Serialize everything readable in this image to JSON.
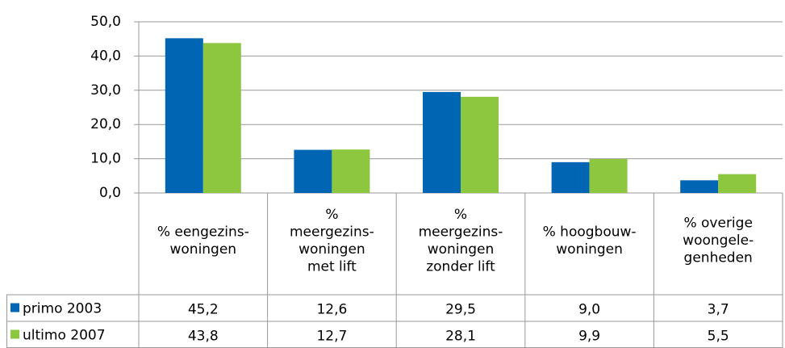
{
  "chart_data": {
    "type": "bar",
    "categories": [
      [
        "% eengezins-",
        "woningen"
      ],
      [
        "%",
        "meergezins-",
        "woningen",
        "met lift"
      ],
      [
        "%",
        "meergezins-",
        "woningen",
        "zonder lift"
      ],
      [
        "% hoogbouw-",
        "woningen"
      ],
      [
        "% overige",
        "woongele-",
        "genheden"
      ]
    ],
    "series": [
      {
        "name": "primo 2003",
        "color": "#0066b3",
        "values": [
          45.2,
          12.6,
          29.5,
          9.0,
          3.7
        ],
        "value_labels": [
          "45,2",
          "12,6",
          "29,5",
          "9,0",
          "3,7"
        ]
      },
      {
        "name": "ultimo 2007",
        "color": "#8dc63f",
        "values": [
          43.8,
          12.7,
          28.1,
          9.9,
          5.5
        ],
        "value_labels": [
          "43,8",
          "12,7",
          "28,1",
          "9,9",
          "5,5"
        ]
      }
    ],
    "ylim": [
      0,
      50
    ],
    "yticks": [
      {
        "value": 0,
        "label": "0,0"
      },
      {
        "value": 10,
        "label": "10,0"
      },
      {
        "value": 20,
        "label": "20,0"
      },
      {
        "value": 30,
        "label": "30,0"
      },
      {
        "value": 40,
        "label": "40,0"
      },
      {
        "value": 50,
        "label": "50,0"
      }
    ],
    "grid": true
  }
}
